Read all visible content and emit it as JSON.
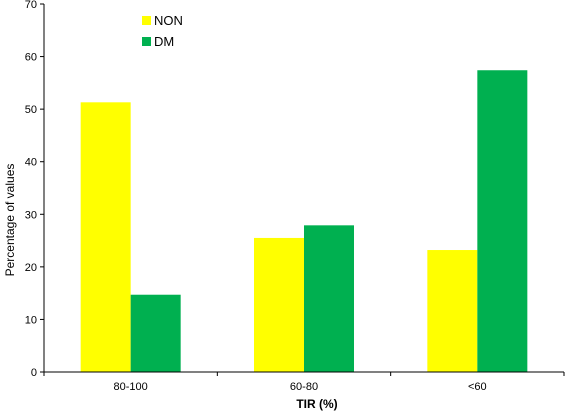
{
  "chart_data": {
    "type": "bar",
    "title": "",
    "xlabel": "TIR (%)",
    "ylabel": "Percentage of values",
    "categories": [
      "80-100",
      "60-80",
      "<60"
    ],
    "series": [
      {
        "name": "NON",
        "color": "#ffff00",
        "values": [
          51.3,
          25.5,
          23.2
        ]
      },
      {
        "name": "DM",
        "color": "#00b050",
        "values": [
          14.7,
          27.9,
          57.4
        ]
      }
    ],
    "ylim": [
      0,
      70
    ],
    "yticks": [
      "0",
      "10",
      "20",
      "30",
      "40",
      "50",
      "60",
      "70"
    ],
    "grid": false,
    "legend_position": "top-left"
  }
}
